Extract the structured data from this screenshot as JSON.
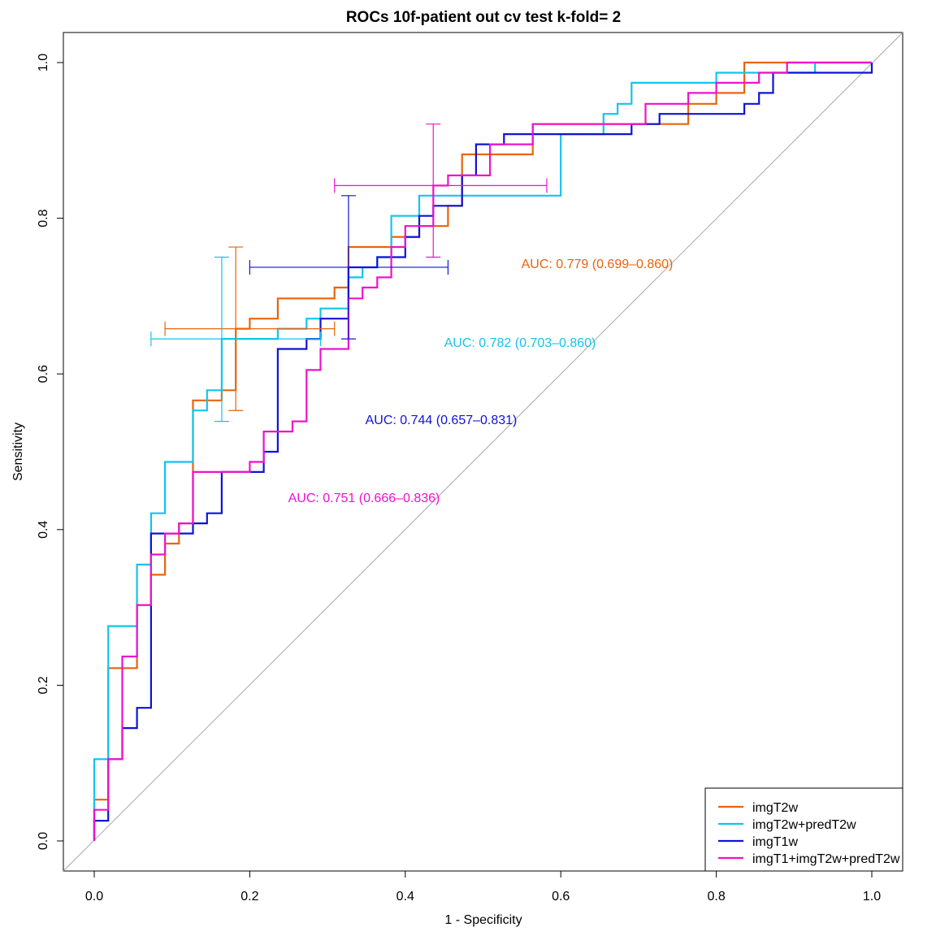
{
  "chart_data": {
    "type": "line",
    "title": "ROCs 10f-patient out cv test k-fold= 2",
    "xlabel": "1 - Specificity",
    "ylabel": "Sensitivity",
    "xlim": [
      0.0,
      1.0
    ],
    "ylim": [
      0.0,
      1.0
    ],
    "x_ticks": [
      "0.0",
      "0.2",
      "0.4",
      "0.6",
      "0.8",
      "1.0"
    ],
    "y_ticks": [
      "0.0",
      "0.2",
      "0.4",
      "0.6",
      "0.8",
      "1.0"
    ],
    "grid": false,
    "diagonal_reference": true,
    "legend_position": "bottom-right",
    "series": [
      {
        "name": "imgT2w",
        "color": "#e8640c",
        "auc_text": "AUC: 0.779 (0.699–0.860)",
        "points": [
          [
            0,
            0
          ],
          [
            0,
            0.053
          ],
          [
            0.018,
            0.053
          ],
          [
            0.018,
            0.222
          ],
          [
            0.055,
            0.222
          ],
          [
            0.055,
            0.303
          ],
          [
            0.073,
            0.303
          ],
          [
            0.073,
            0.342
          ],
          [
            0.091,
            0.342
          ],
          [
            0.091,
            0.382
          ],
          [
            0.109,
            0.382
          ],
          [
            0.109,
            0.408
          ],
          [
            0.127,
            0.408
          ],
          [
            0.127,
            0.566
          ],
          [
            0.164,
            0.566
          ],
          [
            0.164,
            0.579
          ],
          [
            0.182,
            0.579
          ],
          [
            0.182,
            0.658
          ],
          [
            0.2,
            0.658
          ],
          [
            0.2,
            0.671
          ],
          [
            0.236,
            0.671
          ],
          [
            0.236,
            0.697
          ],
          [
            0.309,
            0.697
          ],
          [
            0.309,
            0.711
          ],
          [
            0.327,
            0.711
          ],
          [
            0.327,
            0.763
          ],
          [
            0.382,
            0.763
          ],
          [
            0.382,
            0.776
          ],
          [
            0.418,
            0.776
          ],
          [
            0.418,
            0.79
          ],
          [
            0.455,
            0.79
          ],
          [
            0.455,
            0.816
          ],
          [
            0.473,
            0.816
          ],
          [
            0.473,
            0.882
          ],
          [
            0.564,
            0.882
          ],
          [
            0.564,
            0.921
          ],
          [
            0.764,
            0.921
          ],
          [
            0.764,
            0.947
          ],
          [
            0.8,
            0.947
          ],
          [
            0.8,
            0.961
          ],
          [
            0.836,
            0.961
          ],
          [
            0.836,
            1.0
          ],
          [
            1.0,
            1.0
          ]
        ],
        "ci_point": {
          "x": 0.182,
          "y": 0.658,
          "x_lo": 0.091,
          "x_hi": 0.309,
          "y_lo": 0.553,
          "y_hi": 0.763
        }
      },
      {
        "name": "imgT2w+predT2w",
        "color": "#12c4ec",
        "auc_text": "AUC: 0.782 (0.703–0.860)",
        "points": [
          [
            0,
            0
          ],
          [
            0,
            0.105
          ],
          [
            0.018,
            0.105
          ],
          [
            0.018,
            0.276
          ],
          [
            0.055,
            0.276
          ],
          [
            0.055,
            0.355
          ],
          [
            0.073,
            0.355
          ],
          [
            0.073,
            0.421
          ],
          [
            0.091,
            0.421
          ],
          [
            0.091,
            0.487
          ],
          [
            0.127,
            0.487
          ],
          [
            0.127,
            0.553
          ],
          [
            0.145,
            0.553
          ],
          [
            0.145,
            0.579
          ],
          [
            0.164,
            0.579
          ],
          [
            0.164,
            0.645
          ],
          [
            0.236,
            0.645
          ],
          [
            0.236,
            0.658
          ],
          [
            0.273,
            0.658
          ],
          [
            0.273,
            0.671
          ],
          [
            0.291,
            0.671
          ],
          [
            0.291,
            0.684
          ],
          [
            0.327,
            0.684
          ],
          [
            0.327,
            0.724
          ],
          [
            0.345,
            0.724
          ],
          [
            0.345,
            0.737
          ],
          [
            0.364,
            0.737
          ],
          [
            0.364,
            0.75
          ],
          [
            0.382,
            0.75
          ],
          [
            0.382,
            0.803
          ],
          [
            0.418,
            0.803
          ],
          [
            0.418,
            0.829
          ],
          [
            0.6,
            0.829
          ],
          [
            0.6,
            0.908
          ],
          [
            0.655,
            0.908
          ],
          [
            0.655,
            0.934
          ],
          [
            0.673,
            0.934
          ],
          [
            0.673,
            0.947
          ],
          [
            0.691,
            0.947
          ],
          [
            0.691,
            0.974
          ],
          [
            0.8,
            0.974
          ],
          [
            0.8,
            0.987
          ],
          [
            0.927,
            0.987
          ],
          [
            0.927,
            1.0
          ],
          [
            1.0,
            1.0
          ]
        ],
        "ci_point": {
          "x": 0.164,
          "y": 0.645,
          "x_lo": 0.073,
          "x_hi": 0.291,
          "y_lo": 0.539,
          "y_hi": 0.75
        }
      },
      {
        "name": "imgT1w",
        "color": "#0f12d9",
        "auc_text": "AUC: 0.744 (0.657–0.831)",
        "points": [
          [
            0,
            0
          ],
          [
            0,
            0.026
          ],
          [
            0.018,
            0.026
          ],
          [
            0.018,
            0.105
          ],
          [
            0.036,
            0.105
          ],
          [
            0.036,
            0.145
          ],
          [
            0.055,
            0.145
          ],
          [
            0.055,
            0.171
          ],
          [
            0.073,
            0.171
          ],
          [
            0.073,
            0.395
          ],
          [
            0.127,
            0.395
          ],
          [
            0.127,
            0.408
          ],
          [
            0.145,
            0.408
          ],
          [
            0.145,
            0.421
          ],
          [
            0.164,
            0.421
          ],
          [
            0.164,
            0.474
          ],
          [
            0.218,
            0.474
          ],
          [
            0.218,
            0.5
          ],
          [
            0.236,
            0.5
          ],
          [
            0.236,
            0.632
          ],
          [
            0.273,
            0.632
          ],
          [
            0.273,
            0.645
          ],
          [
            0.291,
            0.645
          ],
          [
            0.291,
            0.671
          ],
          [
            0.327,
            0.671
          ],
          [
            0.327,
            0.737
          ],
          [
            0.364,
            0.737
          ],
          [
            0.364,
            0.75
          ],
          [
            0.4,
            0.75
          ],
          [
            0.4,
            0.776
          ],
          [
            0.418,
            0.776
          ],
          [
            0.418,
            0.803
          ],
          [
            0.436,
            0.803
          ],
          [
            0.436,
            0.816
          ],
          [
            0.473,
            0.816
          ],
          [
            0.473,
            0.855
          ],
          [
            0.491,
            0.855
          ],
          [
            0.491,
            0.895
          ],
          [
            0.527,
            0.895
          ],
          [
            0.527,
            0.908
          ],
          [
            0.691,
            0.908
          ],
          [
            0.691,
            0.921
          ],
          [
            0.727,
            0.921
          ],
          [
            0.727,
            0.934
          ],
          [
            0.836,
            0.934
          ],
          [
            0.836,
            0.947
          ],
          [
            0.855,
            0.947
          ],
          [
            0.855,
            0.961
          ],
          [
            0.873,
            0.961
          ],
          [
            0.873,
            0.987
          ],
          [
            1.0,
            0.987
          ],
          [
            1.0,
            1.0
          ]
        ],
        "ci_point": {
          "x": 0.327,
          "y": 0.737,
          "x_lo": 0.2,
          "x_hi": 0.455,
          "y_lo": 0.645,
          "y_hi": 0.829
        }
      },
      {
        "name": "imgT1+imgT2w+predT2w",
        "color": "#ee12cc",
        "auc_text": "AUC: 0.751 (0.666–0.836)",
        "points": [
          [
            0,
            0
          ],
          [
            0,
            0.04
          ],
          [
            0.018,
            0.04
          ],
          [
            0.018,
            0.105
          ],
          [
            0.036,
            0.105
          ],
          [
            0.036,
            0.237
          ],
          [
            0.055,
            0.237
          ],
          [
            0.055,
            0.303
          ],
          [
            0.073,
            0.303
          ],
          [
            0.073,
            0.368
          ],
          [
            0.091,
            0.368
          ],
          [
            0.091,
            0.395
          ],
          [
            0.109,
            0.395
          ],
          [
            0.109,
            0.408
          ],
          [
            0.127,
            0.408
          ],
          [
            0.127,
            0.474
          ],
          [
            0.2,
            0.474
          ],
          [
            0.2,
            0.487
          ],
          [
            0.218,
            0.487
          ],
          [
            0.218,
            0.526
          ],
          [
            0.255,
            0.526
          ],
          [
            0.255,
            0.539
          ],
          [
            0.273,
            0.539
          ],
          [
            0.273,
            0.605
          ],
          [
            0.291,
            0.605
          ],
          [
            0.291,
            0.632
          ],
          [
            0.327,
            0.632
          ],
          [
            0.327,
            0.697
          ],
          [
            0.345,
            0.697
          ],
          [
            0.345,
            0.711
          ],
          [
            0.364,
            0.711
          ],
          [
            0.364,
            0.724
          ],
          [
            0.382,
            0.724
          ],
          [
            0.382,
            0.763
          ],
          [
            0.4,
            0.763
          ],
          [
            0.4,
            0.79
          ],
          [
            0.436,
            0.79
          ],
          [
            0.436,
            0.842
          ],
          [
            0.455,
            0.842
          ],
          [
            0.455,
            0.855
          ],
          [
            0.491,
            0.855
          ],
          [
            0.491,
            0.855
          ],
          [
            0.509,
            0.855
          ],
          [
            0.509,
            0.895
          ],
          [
            0.564,
            0.895
          ],
          [
            0.564,
            0.921
          ],
          [
            0.709,
            0.921
          ],
          [
            0.709,
            0.947
          ],
          [
            0.764,
            0.947
          ],
          [
            0.764,
            0.961
          ],
          [
            0.8,
            0.961
          ],
          [
            0.8,
            0.974
          ],
          [
            0.855,
            0.974
          ],
          [
            0.855,
            0.987
          ],
          [
            0.891,
            0.987
          ],
          [
            0.891,
            1.0
          ],
          [
            1.0,
            1.0
          ]
        ],
        "ci_point": {
          "x": 0.436,
          "y": 0.842,
          "x_lo": 0.309,
          "x_hi": 0.582,
          "y_lo": 0.75,
          "y_hi": 0.921
        }
      }
    ]
  }
}
